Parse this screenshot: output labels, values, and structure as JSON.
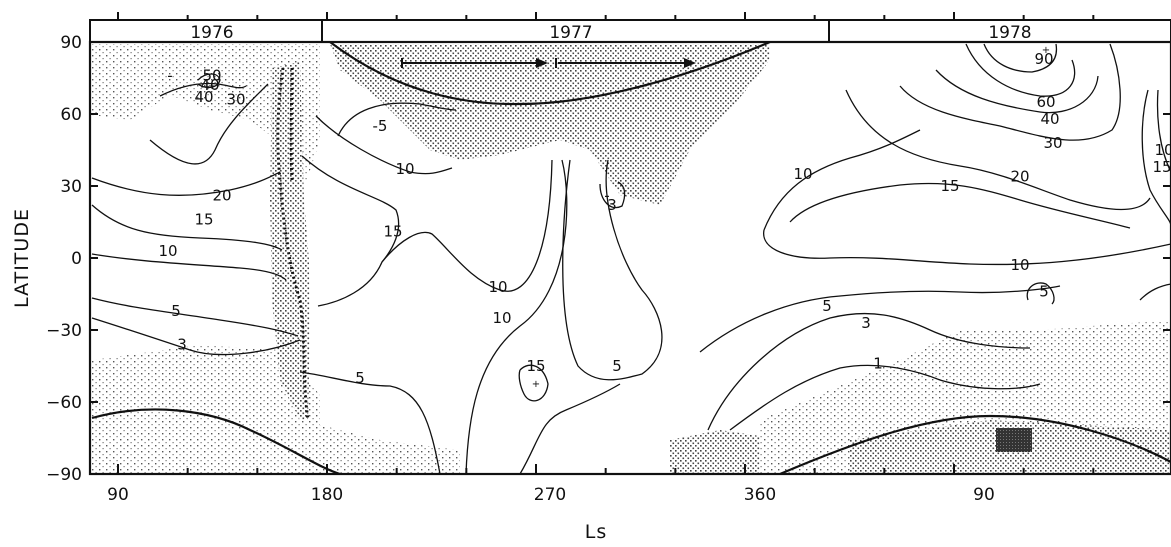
{
  "chart_data": {
    "type": "contour",
    "xlabel": "Ls",
    "ylabel": "LATITUDE",
    "ylim": [
      -90,
      90
    ],
    "x_tick_labels": [
      "90",
      "180",
      "270",
      "360",
      "90"
    ],
    "y_tick_labels": [
      "90",
      "60",
      "30",
      "0",
      "-30",
      "-60",
      "-90"
    ],
    "year_labels": [
      "1976",
      "1977",
      "1978"
    ],
    "grid": false,
    "contour_labels": [
      {
        "text": "-",
        "lat": 76,
        "year": 1976
      },
      {
        "text": "50",
        "lat": 76,
        "year": 1976
      },
      {
        "text": "40",
        "lat": 72,
        "year": 1976
      },
      {
        "text": "40",
        "lat": 67,
        "year": 1976
      },
      {
        "text": "30",
        "lat": 66,
        "year": 1976
      },
      {
        "text": "20",
        "lat": 26,
        "year": 1976
      },
      {
        "text": "15",
        "lat": 16,
        "year": 1976
      },
      {
        "text": "10",
        "lat": 3,
        "year": 1976
      },
      {
        "text": "5",
        "lat": -22,
        "year": 1976
      },
      {
        "text": "3",
        "lat": -36,
        "year": 1976
      },
      {
        "text": "5",
        "lat": -50,
        "year": 1977
      },
      {
        "text": "-5",
        "lat": 55,
        "year": 1977
      },
      {
        "text": "10",
        "lat": 37,
        "year": 1977
      },
      {
        "text": "15",
        "lat": 11,
        "year": 1977
      },
      {
        "text": "10",
        "lat": -12,
        "year": 1977
      },
      {
        "text": "10",
        "lat": -25,
        "year": 1977
      },
      {
        "text": "15",
        "lat": -45,
        "year": 1977
      },
      {
        "text": "5",
        "lat": -45,
        "year": 1977
      },
      {
        "text": "-",
        "lat": 26,
        "year": 1977
      },
      {
        "text": "3",
        "lat": 22,
        "year": 1977
      },
      {
        "text": "10",
        "lat": 35,
        "year": 1978
      },
      {
        "text": "15",
        "lat": 30,
        "year": 1978
      },
      {
        "text": "20",
        "lat": 34,
        "year": 1978
      },
      {
        "text": "30",
        "lat": 48,
        "year": 1978
      },
      {
        "text": "40",
        "lat": 58,
        "year": 1978
      },
      {
        "text": "60",
        "lat": 65,
        "year": 1978
      },
      {
        "text": "90",
        "lat": 83,
        "year": 1978
      },
      {
        "text": "10",
        "lat": 45,
        "year": 1978
      },
      {
        "text": "15",
        "lat": 38,
        "year": 1978
      },
      {
        "text": "10",
        "lat": -3,
        "year": 1978
      },
      {
        "text": "5",
        "lat": -14,
        "year": 1978
      },
      {
        "text": "5",
        "lat": -20,
        "year": 1978
      },
      {
        "text": "3",
        "lat": -27,
        "year": 1978
      },
      {
        "text": "1",
        "lat": -44,
        "year": 1978
      }
    ]
  }
}
